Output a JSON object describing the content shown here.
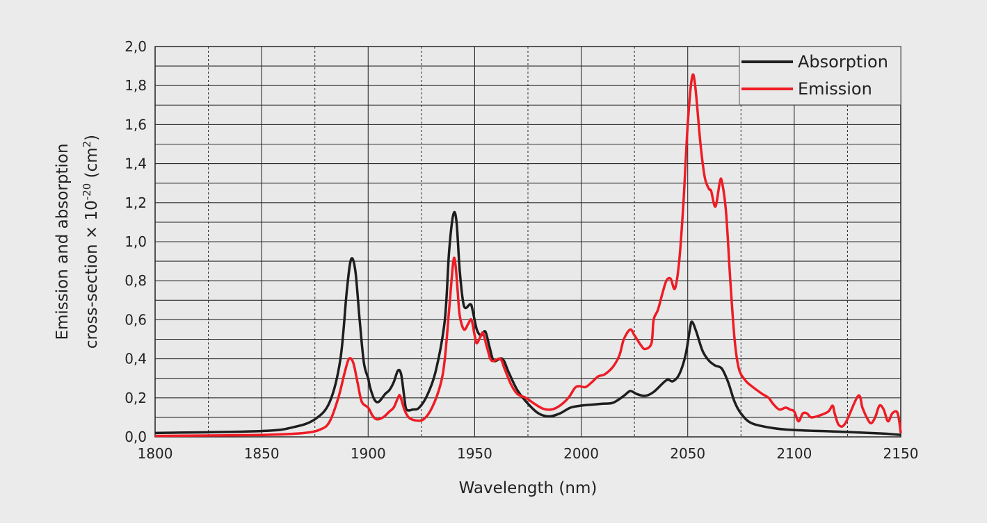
{
  "chart_data": {
    "type": "line",
    "title": "",
    "xlabel": "Wavelength (nm)",
    "ylabel_line1": "Emission and absorption",
    "ylabel_line2": "cross-section × 10",
    "ylabel_exp": "-20",
    "ylabel_unit_pre": " (cm",
    "ylabel_unit_exp": "2",
    "ylabel_unit_post": ")",
    "xlim": [
      1800,
      2150
    ],
    "ylim": [
      0,
      2.0
    ],
    "xticks": [
      1800,
      1850,
      1900,
      1950,
      2000,
      2050,
      2100,
      2150
    ],
    "xtick_labels": [
      "1800",
      "1850",
      "1900",
      "1950",
      "2000",
      "2050",
      "2100",
      "2150"
    ],
    "yticks": [
      0,
      0.2,
      0.4,
      0.6,
      0.8,
      1.0,
      1.2,
      1.4,
      1.6,
      1.8,
      2.0
    ],
    "ytick_labels": [
      "0,0",
      "0,2",
      "0,4",
      "0,6",
      "0,8",
      "1,0",
      "1,2",
      "1,4",
      "1,6",
      "1,8",
      "2,0"
    ],
    "grid": true,
    "legend_position": "top-right",
    "series": [
      {
        "name": "Absorption",
        "color": "#1e1e1e",
        "points": [
          [
            1800,
            0.02
          ],
          [
            1850,
            0.03
          ],
          [
            1865,
            0.05
          ],
          [
            1875,
            0.09
          ],
          [
            1882,
            0.18
          ],
          [
            1887,
            0.4
          ],
          [
            1890,
            0.75
          ],
          [
            1892,
            0.91
          ],
          [
            1894,
            0.85
          ],
          [
            1896,
            0.6
          ],
          [
            1898,
            0.38
          ],
          [
            1900,
            0.3
          ],
          [
            1901,
            0.25
          ],
          [
            1903,
            0.19
          ],
          [
            1905,
            0.18
          ],
          [
            1908,
            0.22
          ],
          [
            1910,
            0.24
          ],
          [
            1912,
            0.28
          ],
          [
            1914,
            0.34
          ],
          [
            1915.5,
            0.32
          ],
          [
            1917,
            0.2
          ],
          [
            1918,
            0.14
          ],
          [
            1921,
            0.14
          ],
          [
            1924,
            0.15
          ],
          [
            1928,
            0.22
          ],
          [
            1932,
            0.35
          ],
          [
            1936,
            0.6
          ],
          [
            1938,
            0.95
          ],
          [
            1940,
            1.14
          ],
          [
            1941.5,
            1.1
          ],
          [
            1943,
            0.85
          ],
          [
            1945,
            0.67
          ],
          [
            1948,
            0.68
          ],
          [
            1949,
            0.65
          ],
          [
            1951,
            0.55
          ],
          [
            1953,
            0.52
          ],
          [
            1955,
            0.54
          ],
          [
            1957,
            0.46
          ],
          [
            1959,
            0.39
          ],
          [
            1963,
            0.4
          ],
          [
            1966,
            0.33
          ],
          [
            1970,
            0.24
          ],
          [
            1975,
            0.17
          ],
          [
            1980,
            0.12
          ],
          [
            1985,
            0.105
          ],
          [
            1990,
            0.12
          ],
          [
            1995,
            0.15
          ],
          [
            2000,
            0.16
          ],
          [
            2005,
            0.165
          ],
          [
            2010,
            0.17
          ],
          [
            2015,
            0.175
          ],
          [
            2020,
            0.21
          ],
          [
            2023,
            0.235
          ],
          [
            2026,
            0.22
          ],
          [
            2030,
            0.21
          ],
          [
            2034,
            0.23
          ],
          [
            2040,
            0.29
          ],
          [
            2043,
            0.285
          ],
          [
            2046,
            0.32
          ],
          [
            2049,
            0.42
          ],
          [
            2051,
            0.55
          ],
          [
            2052,
            0.59
          ],
          [
            2054,
            0.54
          ],
          [
            2057,
            0.44
          ],
          [
            2060,
            0.39
          ],
          [
            2063,
            0.365
          ],
          [
            2066,
            0.35
          ],
          [
            2069,
            0.28
          ],
          [
            2072,
            0.18
          ],
          [
            2075,
            0.12
          ],
          [
            2080,
            0.07
          ],
          [
            2090,
            0.045
          ],
          [
            2100,
            0.035
          ],
          [
            2120,
            0.027
          ],
          [
            2140,
            0.018
          ],
          [
            2150,
            0.01
          ]
        ]
      },
      {
        "name": "Emission",
        "color": "#ee1c25",
        "points": [
          [
            1800,
            0.005
          ],
          [
            1850,
            0.01
          ],
          [
            1870,
            0.02
          ],
          [
            1878,
            0.04
          ],
          [
            1882,
            0.08
          ],
          [
            1886,
            0.2
          ],
          [
            1889,
            0.33
          ],
          [
            1891,
            0.4
          ],
          [
            1893,
            0.38
          ],
          [
            1895,
            0.28
          ],
          [
            1897,
            0.18
          ],
          [
            1900,
            0.15
          ],
          [
            1902,
            0.11
          ],
          [
            1904,
            0.09
          ],
          [
            1907,
            0.1
          ],
          [
            1910,
            0.13
          ],
          [
            1912,
            0.15
          ],
          [
            1914,
            0.2
          ],
          [
            1915,
            0.21
          ],
          [
            1917,
            0.14
          ],
          [
            1919,
            0.1
          ],
          [
            1922,
            0.085
          ],
          [
            1926,
            0.09
          ],
          [
            1930,
            0.15
          ],
          [
            1934,
            0.27
          ],
          [
            1936,
            0.4
          ],
          [
            1938,
            0.65
          ],
          [
            1940,
            0.9
          ],
          [
            1941,
            0.88
          ],
          [
            1942,
            0.75
          ],
          [
            1943,
            0.62
          ],
          [
            1945,
            0.55
          ],
          [
            1947,
            0.58
          ],
          [
            1948.5,
            0.6
          ],
          [
            1950,
            0.52
          ],
          [
            1951,
            0.48
          ],
          [
            1953,
            0.52
          ],
          [
            1954,
            0.53
          ],
          [
            1956,
            0.45
          ],
          [
            1958,
            0.39
          ],
          [
            1962,
            0.4
          ],
          [
            1964,
            0.35
          ],
          [
            1967,
            0.27
          ],
          [
            1970,
            0.22
          ],
          [
            1974,
            0.2
          ],
          [
            1978,
            0.17
          ],
          [
            1982,
            0.145
          ],
          [
            1986,
            0.14
          ],
          [
            1990,
            0.16
          ],
          [
            1994,
            0.2
          ],
          [
            1997,
            0.25
          ],
          [
            1999,
            0.26
          ],
          [
            2002,
            0.255
          ],
          [
            2005,
            0.28
          ],
          [
            2008,
            0.31
          ],
          [
            2011,
            0.32
          ],
          [
            2015,
            0.36
          ],
          [
            2018,
            0.42
          ],
          [
            2020,
            0.5
          ],
          [
            2023,
            0.55
          ],
          [
            2025,
            0.52
          ],
          [
            2028,
            0.47
          ],
          [
            2030,
            0.45
          ],
          [
            2033,
            0.48
          ],
          [
            2034,
            0.6
          ],
          [
            2036,
            0.65
          ],
          [
            2038,
            0.73
          ],
          [
            2040,
            0.8
          ],
          [
            2042,
            0.81
          ],
          [
            2044,
            0.76
          ],
          [
            2046,
            0.9
          ],
          [
            2048,
            1.2
          ],
          [
            2050,
            1.6
          ],
          [
            2052,
            1.84
          ],
          [
            2053.5,
            1.8
          ],
          [
            2056,
            1.5
          ],
          [
            2058,
            1.33
          ],
          [
            2060,
            1.27
          ],
          [
            2061,
            1.26
          ],
          [
            2063,
            1.18
          ],
          [
            2065,
            1.3
          ],
          [
            2066,
            1.31
          ],
          [
            2068,
            1.15
          ],
          [
            2070,
            0.8
          ],
          [
            2072,
            0.5
          ],
          [
            2074,
            0.35
          ],
          [
            2077,
            0.29
          ],
          [
            2080,
            0.26
          ],
          [
            2085,
            0.22
          ],
          [
            2088,
            0.2
          ],
          [
            2090,
            0.17
          ],
          [
            2093,
            0.14
          ],
          [
            2096,
            0.15
          ],
          [
            2098,
            0.14
          ],
          [
            2100,
            0.13
          ],
          [
            2102,
            0.08
          ],
          [
            2104,
            0.12
          ],
          [
            2106,
            0.12
          ],
          [
            2108,
            0.1
          ],
          [
            2112,
            0.11
          ],
          [
            2116,
            0.13
          ],
          [
            2118,
            0.16
          ],
          [
            2119,
            0.12
          ],
          [
            2121,
            0.06
          ],
          [
            2124,
            0.07
          ],
          [
            2130,
            0.21
          ],
          [
            2132,
            0.15
          ],
          [
            2134,
            0.1
          ],
          [
            2136,
            0.07
          ],
          [
            2138,
            0.1
          ],
          [
            2140,
            0.16
          ],
          [
            2142,
            0.14
          ],
          [
            2144,
            0.08
          ],
          [
            2146,
            0.12
          ],
          [
            2148,
            0.13
          ],
          [
            2149,
            0.1
          ],
          [
            2150,
            0.02
          ]
        ]
      }
    ]
  }
}
